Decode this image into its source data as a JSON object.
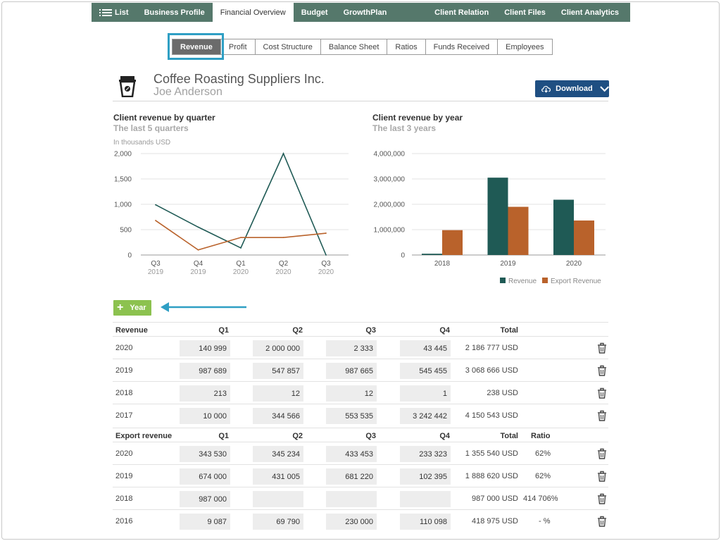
{
  "topnav": {
    "left": [
      {
        "label": "List",
        "icon": "list-icon",
        "active": false
      },
      {
        "label": "Business Profile",
        "active": false
      },
      {
        "label": "Financial Overview",
        "active": true
      },
      {
        "label": "Budget",
        "active": false
      },
      {
        "label": "GrowthPlan",
        "active": false
      }
    ],
    "right": [
      {
        "label": "Client Relation"
      },
      {
        "label": "Client Files"
      },
      {
        "label": "Client Analytics"
      }
    ]
  },
  "subtabs": [
    "Revenue",
    "Profit",
    "Cost Structure",
    "Balance Sheet",
    "Ratios",
    "Funds Received",
    "Employees"
  ],
  "active_subtab": "Revenue",
  "header": {
    "company": "Coffee Roasting Suppliers Inc.",
    "contact": "Joe Anderson",
    "download_label": "Download",
    "icon": "coffee-cup-icon"
  },
  "colors": {
    "nav": "#55786b",
    "revenue": "#1f5a55",
    "export": "#b9622b",
    "accent_highlight": "#2f9fc4",
    "add_button": "#8cc24f",
    "download_button": "#1f4f82"
  },
  "chart_data": [
    {
      "type": "line",
      "title": "Client revenue by quarter",
      "subtitle": "The last 5 quarters",
      "ylabel": "In thousands USD",
      "categories": [
        "Q3",
        "Q4",
        "Q1",
        "Q2",
        "Q3"
      ],
      "category_years": [
        "2019",
        "2019",
        "2020",
        "2020",
        "2020"
      ],
      "yticks": [
        "2,000",
        "1,500",
        "1,000",
        "500",
        "0"
      ],
      "ylim": [
        0,
        2000
      ],
      "series": [
        {
          "key": "revenue",
          "values": [
            990,
            550,
            140,
            2000,
            0
          ]
        },
        {
          "key": "export",
          "values": [
            680,
            100,
            345,
            345,
            430
          ]
        }
      ]
    },
    {
      "type": "bar",
      "title": "Client revenue by year",
      "subtitle": "The last 3 years",
      "categories": [
        "2018",
        "2019",
        "2020"
      ],
      "yticks": [
        "4,000,000",
        "3,000,000",
        "2,000,000",
        "1,000,000",
        "0"
      ],
      "ylim": [
        0,
        4000000
      ],
      "legend_position": "bottom-right",
      "series": [
        {
          "name": "Revenue",
          "key": "revenue",
          "values": [
            50000,
            3050000,
            2180000
          ]
        },
        {
          "name": "Export Revenue",
          "key": "export",
          "values": [
            980000,
            1900000,
            1360000
          ]
        }
      ]
    }
  ],
  "add_year_label": "Year",
  "revenue_table": {
    "headers": [
      "Revenue",
      "Q1",
      "Q2",
      "Q3",
      "Q4",
      "Total"
    ],
    "rows": [
      {
        "year": "2020",
        "q": [
          "140 999",
          "2 000 000",
          "2 333",
          "43 445"
        ],
        "total": "2 186 777 USD"
      },
      {
        "year": "2019",
        "q": [
          "987 689",
          "547 857",
          "987 665",
          "545 455"
        ],
        "total": "3 068 666 USD"
      },
      {
        "year": "2018",
        "q": [
          "213",
          "12",
          "12",
          "1"
        ],
        "total": "238 USD"
      },
      {
        "year": "2017",
        "q": [
          "10 000",
          "344 566",
          "553 535",
          "3 242 442"
        ],
        "total": "4 150 543 USD"
      }
    ]
  },
  "export_table": {
    "headers": [
      "Export revenue",
      "Q1",
      "Q2",
      "Q3",
      "Q4",
      "Total",
      "Ratio"
    ],
    "rows": [
      {
        "year": "2020",
        "q": [
          "343 530",
          "345 234",
          "433 453",
          "233 323"
        ],
        "total": "1 355 540 USD",
        "ratio": "62%"
      },
      {
        "year": "2019",
        "q": [
          "674 000",
          "431 005",
          "681 220",
          "102 395"
        ],
        "total": "1 888 620 USD",
        "ratio": "62%"
      },
      {
        "year": "2018",
        "q": [
          "987 000",
          "",
          "",
          ""
        ],
        "total": "987 000 USD",
        "ratio": "414 706%"
      },
      {
        "year": "2016",
        "q": [
          "9 087",
          "69 790",
          "230 000",
          "110 098"
        ],
        "total": "418 975 USD",
        "ratio": "- %"
      }
    ]
  }
}
